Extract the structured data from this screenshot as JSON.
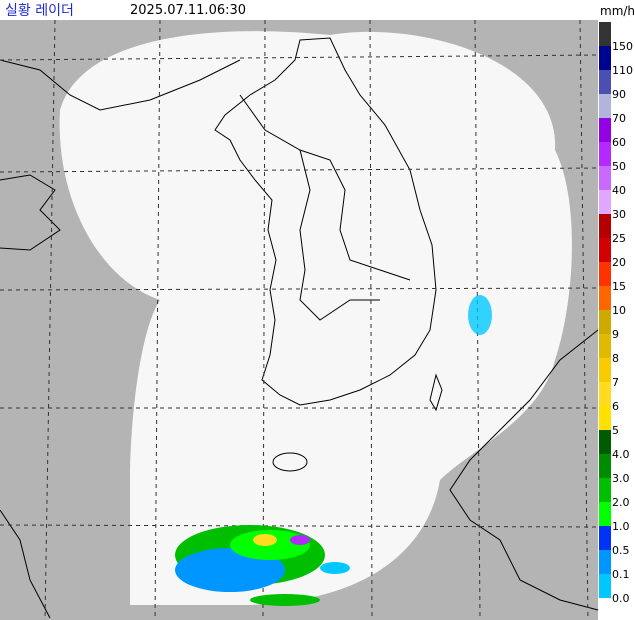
{
  "header": {
    "title": "실황 레이더",
    "time": "2025.07.11.06:30",
    "unit": "mm/h"
  },
  "legend": {
    "items": [
      {
        "label": "150",
        "color": "#333333"
      },
      {
        "label": "110",
        "color": "#000390"
      },
      {
        "label": "90",
        "color": "#4c4eb1"
      },
      {
        "label": "70",
        "color": "#b3b4de"
      },
      {
        "label": "60",
        "color": "#9300e4"
      },
      {
        "label": "50",
        "color": "#b329ff"
      },
      {
        "label": "40",
        "color": "#c969ff"
      },
      {
        "label": "30",
        "color": "#e0a9ff"
      },
      {
        "label": "25",
        "color": "#b40000"
      },
      {
        "label": "20",
        "color": "#d20000"
      },
      {
        "label": "15",
        "color": "#ff3300"
      },
      {
        "label": "10",
        "color": "#ff6600"
      },
      {
        "label": "9",
        "color": "#ccaa00"
      },
      {
        "label": "8",
        "color": "#e0b900"
      },
      {
        "label": "7",
        "color": "#f9cb00"
      },
      {
        "label": "6",
        "color": "#ffdc1f"
      },
      {
        "label": "5",
        "color": "#ffe100"
      },
      {
        "label": "4.0",
        "color": "#005a00"
      },
      {
        "label": "3.0",
        "color": "#008c00"
      },
      {
        "label": "2.0",
        "color": "#00be00"
      },
      {
        "label": "1.0",
        "color": "#00ff00"
      },
      {
        "label": "0.5",
        "color": "#0033f5"
      },
      {
        "label": "0.1",
        "color": "#0096ff"
      },
      {
        "label": "0.0",
        "color": "#00c8ff"
      }
    ]
  }
}
